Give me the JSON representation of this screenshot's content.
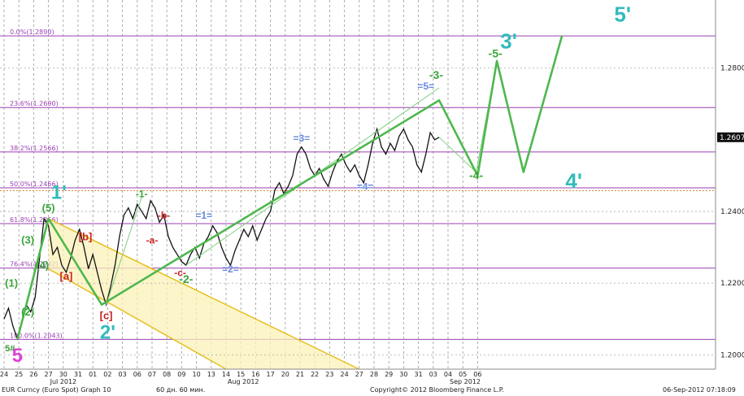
{
  "chart_data": {
    "type": "line",
    "instrument": "EUR Curncy (Euro Spot) Graph 10",
    "interval_label": "60 дн. 60 мин.",
    "copyright": "Copyright© 2012 Bloomberg Finance L.P.",
    "timestamp": "06-Sep-2012 07:18:09",
    "ylim": [
      1.196,
      1.299
    ],
    "y_ticks": [
      1.2,
      1.22,
      1.24,
      1.28
    ],
    "y_tick_labels": [
      "1.2000",
      "1.2200",
      "1.2400",
      "1.2800"
    ],
    "last_price": 1.2607,
    "last_price_label": "1.2607",
    "x_ticks": [
      "24",
      "25",
      "26",
      "27",
      "30",
      "31",
      "01",
      "02",
      "03",
      "06",
      "07",
      "08",
      "09",
      "10",
      "13",
      "14",
      "15",
      "16",
      "17",
      "20",
      "21",
      "22",
      "23",
      "24",
      "27",
      "28",
      "29",
      "30",
      "31",
      "03",
      "04",
      "05",
      "06"
    ],
    "month_labels": [
      {
        "label": "Jul 2012",
        "after_tick": 3
      },
      {
        "label": "Aug 2012",
        "after_tick": 15
      },
      {
        "label": "Sep 2012",
        "after_tick": 30
      }
    ],
    "fib_levels": [
      {
        "label": "0.0%(1.2890)",
        "value": 1.289
      },
      {
        "label": "23.6%(1.2690)",
        "value": 1.269
      },
      {
        "label": "38.2%(1.2566)",
        "value": 1.2566
      },
      {
        "label": "50.0%(1.2466)",
        "value": 1.2466
      },
      {
        "label": "61.8%(1.2366)",
        "value": 1.2366
      },
      {
        "label": "76.4%(1.2242)",
        "value": 1.2242
      },
      {
        "label": "100.0%(1.2043)",
        "value": 1.2043
      }
    ],
    "horizontal_dotted": [
      1.2458
    ],
    "price_series": [
      {
        "x": 0,
        "y": 1.21
      },
      {
        "x": 0.3,
        "y": 1.213
      },
      {
        "x": 0.6,
        "y": 1.208
      },
      {
        "x": 0.9,
        "y": 1.2045
      },
      {
        "x": 1.2,
        "y": 1.209
      },
      {
        "x": 1.5,
        "y": 1.214
      },
      {
        "x": 1.8,
        "y": 1.212
      },
      {
        "x": 2.1,
        "y": 1.216
      },
      {
        "x": 2.4,
        "y": 1.227
      },
      {
        "x": 2.7,
        "y": 1.238
      },
      {
        "x": 3.0,
        "y": 1.236
      },
      {
        "x": 3.3,
        "y": 1.228
      },
      {
        "x": 3.6,
        "y": 1.23
      },
      {
        "x": 3.9,
        "y": 1.225
      },
      {
        "x": 4.2,
        "y": 1.223
      },
      {
        "x": 4.5,
        "y": 1.227
      },
      {
        "x": 4.8,
        "y": 1.232
      },
      {
        "x": 5.1,
        "y": 1.235
      },
      {
        "x": 5.4,
        "y": 1.23
      },
      {
        "x": 5.7,
        "y": 1.224
      },
      {
        "x": 6.0,
        "y": 1.228
      },
      {
        "x": 6.3,
        "y": 1.223
      },
      {
        "x": 6.6,
        "y": 1.218
      },
      {
        "x": 6.9,
        "y": 1.214
      },
      {
        "x": 7.2,
        "y": 1.219
      },
      {
        "x": 7.5,
        "y": 1.225
      },
      {
        "x": 7.8,
        "y": 1.233
      },
      {
        "x": 8.1,
        "y": 1.239
      },
      {
        "x": 8.4,
        "y": 1.241
      },
      {
        "x": 8.7,
        "y": 1.238
      },
      {
        "x": 9.0,
        "y": 1.242
      },
      {
        "x": 9.3,
        "y": 1.24
      },
      {
        "x": 9.6,
        "y": 1.238
      },
      {
        "x": 9.9,
        "y": 1.243
      },
      {
        "x": 10.2,
        "y": 1.241
      },
      {
        "x": 10.5,
        "y": 1.237
      },
      {
        "x": 10.8,
        "y": 1.239
      },
      {
        "x": 11.1,
        "y": 1.233
      },
      {
        "x": 11.4,
        "y": 1.23
      },
      {
        "x": 11.7,
        "y": 1.228
      },
      {
        "x": 12.0,
        "y": 1.226
      },
      {
        "x": 12.3,
        "y": 1.225
      },
      {
        "x": 12.6,
        "y": 1.228
      },
      {
        "x": 12.9,
        "y": 1.23
      },
      {
        "x": 13.2,
        "y": 1.227
      },
      {
        "x": 13.5,
        "y": 1.231
      },
      {
        "x": 13.8,
        "y": 1.233
      },
      {
        "x": 14.1,
        "y": 1.236
      },
      {
        "x": 14.4,
        "y": 1.234
      },
      {
        "x": 14.7,
        "y": 1.23
      },
      {
        "x": 15.0,
        "y": 1.227
      },
      {
        "x": 15.3,
        "y": 1.225
      },
      {
        "x": 15.6,
        "y": 1.229
      },
      {
        "x": 15.9,
        "y": 1.232
      },
      {
        "x": 16.2,
        "y": 1.235
      },
      {
        "x": 16.5,
        "y": 1.233
      },
      {
        "x": 16.8,
        "y": 1.236
      },
      {
        "x": 17.1,
        "y": 1.232
      },
      {
        "x": 17.4,
        "y": 1.235
      },
      {
        "x": 17.7,
        "y": 1.238
      },
      {
        "x": 18.0,
        "y": 1.24
      },
      {
        "x": 18.3,
        "y": 1.246
      },
      {
        "x": 18.6,
        "y": 1.248
      },
      {
        "x": 18.9,
        "y": 1.245
      },
      {
        "x": 19.2,
        "y": 1.247
      },
      {
        "x": 19.5,
        "y": 1.25
      },
      {
        "x": 19.8,
        "y": 1.256
      },
      {
        "x": 20.1,
        "y": 1.258
      },
      {
        "x": 20.4,
        "y": 1.256
      },
      {
        "x": 20.7,
        "y": 1.252
      },
      {
        "x": 21.0,
        "y": 1.25
      },
      {
        "x": 21.3,
        "y": 1.252
      },
      {
        "x": 21.6,
        "y": 1.249
      },
      {
        "x": 21.9,
        "y": 1.247
      },
      {
        "x": 22.2,
        "y": 1.251
      },
      {
        "x": 22.5,
        "y": 1.254
      },
      {
        "x": 22.8,
        "y": 1.256
      },
      {
        "x": 23.1,
        "y": 1.253
      },
      {
        "x": 23.4,
        "y": 1.251
      },
      {
        "x": 23.7,
        "y": 1.253
      },
      {
        "x": 24.0,
        "y": 1.25
      },
      {
        "x": 24.3,
        "y": 1.248
      },
      {
        "x": 24.6,
        "y": 1.253
      },
      {
        "x": 24.9,
        "y": 1.259
      },
      {
        "x": 25.2,
        "y": 1.263
      },
      {
        "x": 25.5,
        "y": 1.258
      },
      {
        "x": 25.8,
        "y": 1.256
      },
      {
        "x": 26.1,
        "y": 1.259
      },
      {
        "x": 26.4,
        "y": 1.257
      },
      {
        "x": 26.7,
        "y": 1.261
      },
      {
        "x": 27.0,
        "y": 1.263
      },
      {
        "x": 27.3,
        "y": 1.26
      },
      {
        "x": 27.6,
        "y": 1.258
      },
      {
        "x": 27.9,
        "y": 1.253
      },
      {
        "x": 28.2,
        "y": 1.251
      },
      {
        "x": 28.5,
        "y": 1.256
      },
      {
        "x": 28.8,
        "y": 1.262
      },
      {
        "x": 29.1,
        "y": 1.26
      },
      {
        "x": 29.4,
        "y": 1.2607
      }
    ],
    "channel": {
      "upper": [
        [
          3.0,
          1.238
        ],
        [
          24.0,
          1.196
        ]
      ],
      "lower": [
        [
          3.0,
          1.224
        ],
        [
          15.0,
          1.196
        ]
      ]
    },
    "primary_wave_path": [
      [
        0.9,
        1.2043
      ],
      [
        3.0,
        1.238
      ],
      [
        6.6,
        1.214
      ],
      [
        29.4,
        1.271
      ],
      [
        32.0,
        1.25
      ],
      [
        33.3,
        1.282
      ],
      [
        35.1,
        1.251
      ],
      [
        37.7,
        1.289
      ]
    ],
    "labels": [
      {
        "text": "5",
        "x": 0.9,
        "y": 1.198,
        "color": "#e040d8",
        "size": 24
      },
      {
        "text": "5#",
        "x": 0.4,
        "y": 1.201,
        "color": "#3a9a3a",
        "size": 11
      },
      {
        "text": "(1)",
        "x": 0.5,
        "y": 1.219,
        "color": "#3aa63a",
        "size": 13
      },
      {
        "text": "(2)",
        "x": 1.6,
        "y": 1.211,
        "color": "#3aa63a",
        "size": 13
      },
      {
        "text": "(3)",
        "x": 1.6,
        "y": 1.231,
        "color": "#3aa63a",
        "size": 13
      },
      {
        "text": "(4)",
        "x": 2.6,
        "y": 1.224,
        "color": "#3aa63a",
        "size": 13
      },
      {
        "text": "(5)",
        "x": 3.0,
        "y": 1.24,
        "color": "#3aa63a",
        "size": 13
      },
      {
        "text": "1'",
        "x": 3.7,
        "y": 1.2435,
        "color": "#33bbbb",
        "size": 24
      },
      {
        "text": "[a]",
        "x": 4.2,
        "y": 1.221,
        "color": "#cc2222",
        "size": 13
      },
      {
        "text": "[b]",
        "x": 5.5,
        "y": 1.232,
        "color": "#cc2222",
        "size": 13
      },
      {
        "text": "[c]",
        "x": 6.9,
        "y": 1.21,
        "color": "#cc2222",
        "size": 13
      },
      {
        "text": "2'",
        "x": 7.0,
        "y": 1.2045,
        "color": "#33bbbb",
        "size": 24
      },
      {
        "text": "-1-",
        "x": 9.3,
        "y": 1.244,
        "color": "#3aa63a",
        "size": 12
      },
      {
        "text": "-b-",
        "x": 10.8,
        "y": 1.238,
        "color": "#cc2222",
        "size": 12
      },
      {
        "text": "-a-",
        "x": 10.0,
        "y": 1.231,
        "color": "#cc2222",
        "size": 12
      },
      {
        "text": "=1=",
        "x": 13.5,
        "y": 1.238,
        "color": "#6688dd",
        "size": 12
      },
      {
        "text": "-c-",
        "x": 11.9,
        "y": 1.222,
        "color": "#cc2222",
        "size": 12
      },
      {
        "text": "-2-",
        "x": 12.3,
        "y": 1.22,
        "color": "#3aa63a",
        "size": 14
      },
      {
        "text": "=2=",
        "x": 15.3,
        "y": 1.223,
        "color": "#6688dd",
        "size": 12
      },
      {
        "text": "=3=",
        "x": 20.1,
        "y": 1.2595,
        "color": "#6688dd",
        "size": 12
      },
      {
        "text": "=4=",
        "x": 24.4,
        "y": 1.246,
        "color": "#6688dd",
        "size": 12
      },
      {
        "text": "=5=",
        "x": 28.5,
        "y": 1.274,
        "color": "#6688dd",
        "size": 12
      },
      {
        "text": "-3-",
        "x": 29.2,
        "y": 1.277,
        "color": "#3aa63a",
        "size": 14
      },
      {
        "text": "-4-",
        "x": 31.9,
        "y": 1.249,
        "color": "#3aa63a",
        "size": 14
      },
      {
        "text": "-5-",
        "x": 33.2,
        "y": 1.283,
        "color": "#3aa63a",
        "size": 14
      },
      {
        "text": "3'",
        "x": 34.1,
        "y": 1.2855,
        "color": "#33bbbb",
        "size": 26
      },
      {
        "text": "4'",
        "x": 38.5,
        "y": 1.2465,
        "color": "#33bbbb",
        "size": 26
      },
      {
        "text": "5'",
        "x": 41.8,
        "y": 1.293,
        "color": "#33bbbb",
        "size": 26
      }
    ]
  }
}
